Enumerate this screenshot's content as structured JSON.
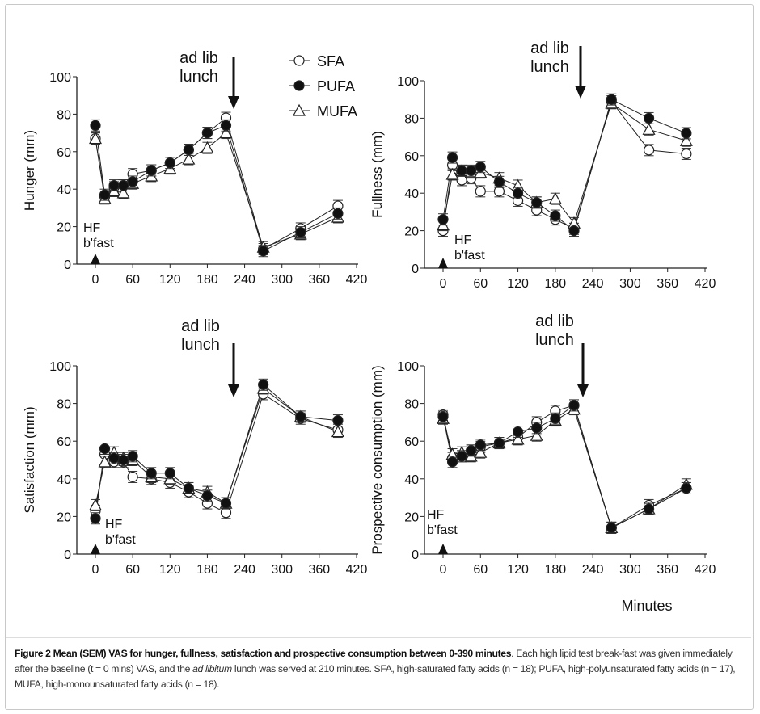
{
  "legend": [
    "SFA",
    "PUFA",
    "MUFA"
  ],
  "annotations": {
    "lunch_line1": "ad lib",
    "lunch_line2": "lunch",
    "bfast_line1": "HF",
    "bfast_line2": "b'fast"
  },
  "xaxis_title": "Minutes",
  "caption": {
    "bold": "Figure 2 Mean (SEM) VAS for hunger, fullness, satisfaction and prospective consumption between 0-390 minutes",
    "text1": ". Each high lipid test break-fast was given immediately after the baseline (t = 0 mins) VAS, and the ",
    "italic": "ad libitum",
    "text2": " lunch was served at 210 minutes. SFA, high-saturated fatty acids (n = 18); PUFA, high-polyunsaturated fatty acids (n = 17), MUFA, high-monounsaturated fatty acids (n = 18)."
  },
  "chart_data": [
    {
      "type": "line",
      "ylabel": "Hunger (mm)",
      "xlim": [
        0,
        420
      ],
      "ylim": [
        0,
        100
      ],
      "xticks": [
        "0",
        "60",
        "120",
        "180",
        "240",
        "300",
        "360",
        "420"
      ],
      "yticks": [
        "0",
        "20",
        "40",
        "60",
        "80",
        "100"
      ],
      "x": [
        0,
        15,
        30,
        45,
        60,
        90,
        120,
        150,
        180,
        210,
        270,
        330,
        390
      ],
      "error_bar": 3,
      "series": [
        {
          "name": "SFA",
          "marker": "open-circle",
          "values": [
            67,
            36,
            41,
            42,
            48,
            50,
            54,
            61,
            70,
            78,
            8,
            19,
            31
          ]
        },
        {
          "name": "PUFA",
          "marker": "filled-circle",
          "values": [
            74,
            37,
            42,
            42,
            44,
            50,
            54,
            61,
            70,
            74,
            7,
            17,
            27
          ]
        },
        {
          "name": "MUFA",
          "marker": "open-triangle",
          "values": [
            67,
            35,
            39,
            38,
            43,
            47,
            51,
            56,
            62,
            70,
            9,
            16,
            25
          ]
        }
      ]
    },
    {
      "type": "line",
      "ylabel": "Fullness (mm)",
      "xlim": [
        0,
        420
      ],
      "ylim": [
        0,
        100
      ],
      "xticks": [
        "0",
        "60",
        "120",
        "180",
        "240",
        "300",
        "360",
        "420"
      ],
      "yticks": [
        "0",
        "20",
        "40",
        "60",
        "80",
        "100"
      ],
      "x": [
        0,
        15,
        30,
        45,
        60,
        90,
        120,
        150,
        180,
        210,
        270,
        330,
        390
      ],
      "error_bar": 3,
      "series": [
        {
          "name": "SFA",
          "marker": "open-circle",
          "values": [
            20,
            55,
            47,
            48,
            41,
            41,
            36,
            31,
            26,
            21,
            89,
            63,
            61
          ]
        },
        {
          "name": "PUFA",
          "marker": "filled-circle",
          "values": [
            26,
            59,
            52,
            52,
            54,
            46,
            40,
            35,
            28,
            20,
            90,
            80,
            72
          ]
        },
        {
          "name": "MUFA",
          "marker": "open-triangle",
          "values": [
            23,
            50,
            52,
            51,
            51,
            48,
            44,
            35,
            37,
            24,
            88,
            74,
            68
          ]
        }
      ]
    },
    {
      "type": "line",
      "ylabel": "Satisfaction (mm)",
      "xlim": [
        0,
        420
      ],
      "ylim": [
        0,
        100
      ],
      "xticks": [
        "0",
        "60",
        "120",
        "180",
        "240",
        "300",
        "360",
        "420"
      ],
      "yticks": [
        "0",
        "20",
        "40",
        "60",
        "80",
        "100"
      ],
      "x": [
        0,
        15,
        30,
        45,
        60,
        90,
        120,
        150,
        180,
        210,
        270,
        330,
        390
      ],
      "error_bar": 3,
      "series": [
        {
          "name": "SFA",
          "marker": "open-circle",
          "values": [
            23,
            53,
            49,
            49,
            41,
            40,
            38,
            33,
            27,
            22,
            85,
            72,
            66
          ]
        },
        {
          "name": "PUFA",
          "marker": "filled-circle",
          "values": [
            19,
            56,
            51,
            50,
            52,
            43,
            43,
            35,
            31,
            27,
            90,
            73,
            71
          ]
        },
        {
          "name": "MUFA",
          "marker": "open-triangle",
          "values": [
            26,
            49,
            54,
            51,
            50,
            41,
            40,
            35,
            33,
            27,
            88,
            73,
            65
          ]
        }
      ]
    },
    {
      "type": "line",
      "ylabel": "Prospective consumption (mm)",
      "xlim": [
        0,
        420
      ],
      "ylim": [
        0,
        100
      ],
      "xticks": [
        "0",
        "60",
        "120",
        "180",
        "240",
        "300",
        "360",
        "420"
      ],
      "yticks": [
        "0",
        "20",
        "40",
        "60",
        "80",
        "100"
      ],
      "x": [
        0,
        15,
        30,
        45,
        60,
        90,
        120,
        150,
        180,
        210,
        270,
        330,
        390
      ],
      "error_bar": 3,
      "series": [
        {
          "name": "SFA",
          "marker": "open-circle",
          "values": [
            74,
            51,
            52,
            55,
            57,
            59,
            62,
            70,
            76,
            79,
            14,
            26,
            35
          ]
        },
        {
          "name": "PUFA",
          "marker": "filled-circle",
          "values": [
            73,
            49,
            52,
            55,
            58,
            59,
            65,
            67,
            72,
            79,
            14,
            24,
            35
          ]
        },
        {
          "name": "MUFA",
          "marker": "open-triangle",
          "values": [
            72,
            53,
            54,
            52,
            54,
            59,
            61,
            63,
            71,
            77,
            14,
            24,
            37
          ]
        }
      ]
    }
  ]
}
